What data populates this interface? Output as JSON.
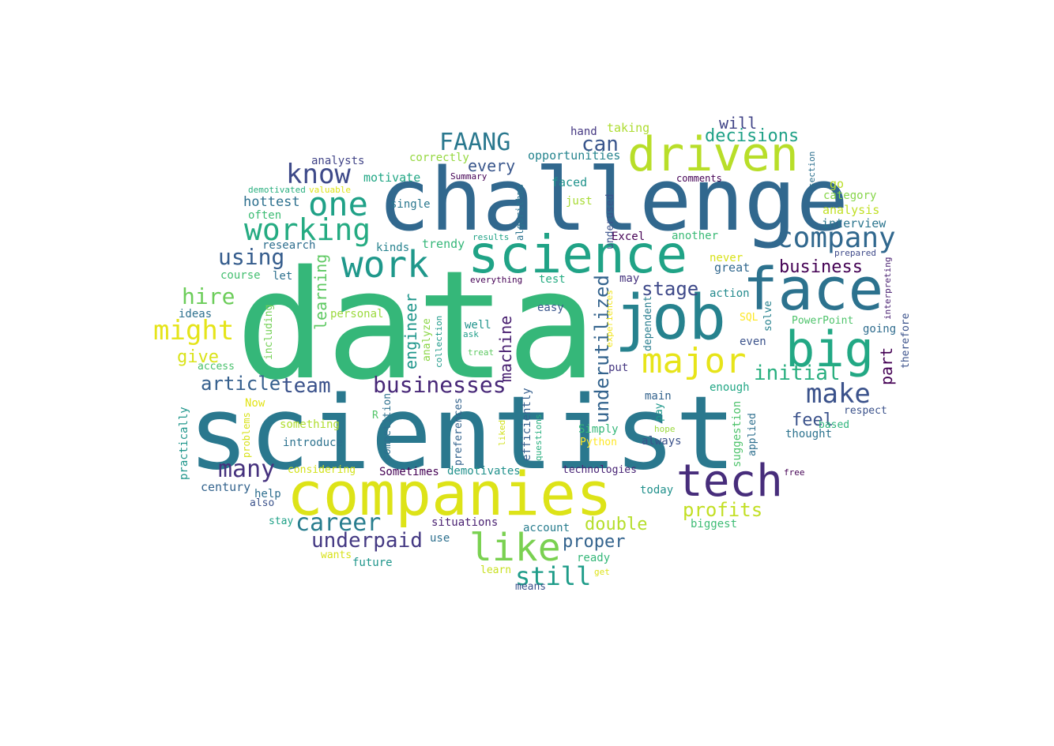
{
  "words": [
    {
      "text": "data",
      "color": "#35b779",
      "vertical": false
    },
    {
      "text": "scientist",
      "color": "#2a788e",
      "vertical": false
    },
    {
      "text": "challenge",
      "color": "#31688e",
      "vertical": false
    },
    {
      "text": "companies",
      "color": "#dde318",
      "vertical": false
    },
    {
      "text": "job",
      "color": "#26828e",
      "vertical": false
    },
    {
      "text": "face",
      "color": "#2c728e",
      "vertical": false
    },
    {
      "text": "science",
      "color": "#20a386",
      "vertical": false
    },
    {
      "text": "driven",
      "color": "#b8de29",
      "vertical": false
    },
    {
      "text": "tech",
      "color": "#472d7b",
      "vertical": false
    },
    {
      "text": "big",
      "color": "#22a884",
      "vertical": false
    },
    {
      "text": "major",
      "color": "#e7e419",
      "vertical": false
    },
    {
      "text": "like",
      "color": "#7ad151",
      "vertical": false
    },
    {
      "text": "work",
      "color": "#1f988b",
      "vertical": false
    },
    {
      "text": "one",
      "color": "#1fa187",
      "vertical": false
    },
    {
      "text": "working",
      "color": "#25ab82",
      "vertical": false
    },
    {
      "text": "company",
      "color": "#31688e",
      "vertical": false
    },
    {
      "text": "make",
      "color": "#3b528b",
      "vertical": false
    },
    {
      "text": "know",
      "color": "#3e4a89",
      "vertical": false
    },
    {
      "text": "might",
      "color": "#e5e419",
      "vertical": false
    },
    {
      "text": "businesses",
      "color": "#482878",
      "vertical": false
    },
    {
      "text": "many",
      "color": "#46327e",
      "vertical": false
    },
    {
      "text": "FAANG",
      "color": "#2a788e",
      "vertical": false
    },
    {
      "text": "career",
      "color": "#287d8e",
      "vertical": false
    },
    {
      "text": "underpaid",
      "color": "#443983",
      "vertical": false
    },
    {
      "text": "still",
      "color": "#1e9c89",
      "vertical": false
    },
    {
      "text": "hire",
      "color": "#6ccd5a",
      "vertical": false
    },
    {
      "text": "initial",
      "color": "#29af7f",
      "vertical": false
    },
    {
      "text": "profits",
      "color": "#c2df23",
      "vertical": false
    },
    {
      "text": "using",
      "color": "#365d8d",
      "vertical": false
    },
    {
      "text": "underutilized",
      "color": "#33638d",
      "vertical": true
    },
    {
      "text": "team",
      "color": "#3b528b",
      "vertical": false
    },
    {
      "text": "article",
      "color": "#355f8d",
      "vertical": false
    },
    {
      "text": "business",
      "color": "#440154",
      "vertical": false
    },
    {
      "text": "decisions",
      "color": "#1fa187",
      "vertical": false
    },
    {
      "text": "can",
      "color": "#39558c",
      "vertical": false
    },
    {
      "text": "stage",
      "color": "#3e4989",
      "vertical": false
    },
    {
      "text": "double",
      "color": "#b5de2b",
      "vertical": false
    },
    {
      "text": "proper",
      "color": "#33638d",
      "vertical": false
    },
    {
      "text": "feel",
      "color": "#3b528b",
      "vertical": false
    },
    {
      "text": "give",
      "color": "#dae319",
      "vertical": false
    },
    {
      "text": "machine",
      "color": "#481f70",
      "vertical": true
    },
    {
      "text": "engineer",
      "color": "#1f968b",
      "vertical": true
    },
    {
      "text": "learning",
      "color": "#5ec962",
      "vertical": true
    },
    {
      "text": "every",
      "color": "#39568c",
      "vertical": false
    },
    {
      "text": "part",
      "color": "#440154",
      "vertical": true
    },
    {
      "text": "will",
      "color": "#414487",
      "vertical": false
    },
    {
      "text": "hottest",
      "color": "#2d708e",
      "vertical": false
    },
    {
      "text": "taking",
      "color": "#addc30",
      "vertical": false
    },
    {
      "text": "hand",
      "color": "#453882",
      "vertical": false
    },
    {
      "text": "opportunities",
      "color": "#25848e",
      "vertical": false
    },
    {
      "text": "correctly",
      "color": "#95d840",
      "vertical": false
    },
    {
      "text": "analysts",
      "color": "#414487",
      "vertical": false
    },
    {
      "text": "Summary",
      "color": "#440154",
      "vertical": false
    },
    {
      "text": "motivate",
      "color": "#22a785",
      "vertical": false
    },
    {
      "text": "faced",
      "color": "#20938c",
      "vertical": false
    },
    {
      "text": "demotivated",
      "color": "#29af7f",
      "vertical": false
    },
    {
      "text": "valuable",
      "color": "#dde318",
      "vertical": false
    },
    {
      "text": "single",
      "color": "#2a778e",
      "vertical": false
    },
    {
      "text": "algorithms",
      "color": "#2c738e",
      "vertical": true
    },
    {
      "text": "just",
      "color": "#a8db34",
      "vertical": false
    },
    {
      "text": "underused",
      "color": "#3b528b",
      "vertical": true
    },
    {
      "text": "comments",
      "color": "#440154",
      "vertical": false
    },
    {
      "text": "section",
      "color": "#2d708e",
      "vertical": true
    },
    {
      "text": "go",
      "color": "#bade28",
      "vertical": false
    },
    {
      "text": "category",
      "color": "#86d549",
      "vertical": false
    },
    {
      "text": "analysis",
      "color": "#c0df25",
      "vertical": false
    },
    {
      "text": "interview",
      "color": "#2b758e",
      "vertical": false
    },
    {
      "text": "prepared",
      "color": "#3e4989",
      "vertical": false
    },
    {
      "text": "often",
      "color": "#3dbc74",
      "vertical": false
    },
    {
      "text": "research",
      "color": "#2e6e8e",
      "vertical": false
    },
    {
      "text": "kinds",
      "color": "#26828e",
      "vertical": false
    },
    {
      "text": "trendy",
      "color": "#35b779",
      "vertical": false
    },
    {
      "text": "results",
      "color": "#20a386",
      "vertical": false
    },
    {
      "text": "Excel",
      "color": "#440154",
      "vertical": false
    },
    {
      "text": "another",
      "color": "#3aba76",
      "vertical": false
    },
    {
      "text": "course",
      "color": "#44bf70",
      "vertical": false
    },
    {
      "text": "let",
      "color": "#2d708e",
      "vertical": false
    },
    {
      "text": "everything",
      "color": "#440154",
      "vertical": false
    },
    {
      "text": "test",
      "color": "#25ac82",
      "vertical": false
    },
    {
      "text": "may",
      "color": "#46337e",
      "vertical": false
    },
    {
      "text": "never",
      "color": "#d8e219",
      "vertical": false
    },
    {
      "text": "great",
      "color": "#31688e",
      "vertical": false
    },
    {
      "text": "interpreting",
      "color": "#481f70",
      "vertical": true
    },
    {
      "text": "ideas",
      "color": "#2d708e",
      "vertical": false
    },
    {
      "text": "personal",
      "color": "#9bd93c",
      "vertical": false
    },
    {
      "text": "including",
      "color": "#73d056",
      "vertical": true
    },
    {
      "text": "analyze",
      "color": "#8bd646",
      "vertical": true
    },
    {
      "text": "collection",
      "color": "#1f9a8a",
      "vertical": true
    },
    {
      "text": "well",
      "color": "#20938c",
      "vertical": false
    },
    {
      "text": "ask",
      "color": "#1f9e89",
      "vertical": false
    },
    {
      "text": "treat",
      "color": "#5ec962",
      "vertical": false
    },
    {
      "text": "easy",
      "color": "#39568c",
      "vertical": false
    },
    {
      "text": "experiences",
      "color": "#f1e51d",
      "vertical": true
    },
    {
      "text": "dependent",
      "color": "#287d8e",
      "vertical": true
    },
    {
      "text": "action",
      "color": "#238a8d",
      "vertical": false
    },
    {
      "text": "SQL",
      "color": "#fde725",
      "vertical": false
    },
    {
      "text": "solve",
      "color": "#26818e",
      "vertical": true
    },
    {
      "text": "PowerPoint",
      "color": "#4ec36b",
      "vertical": false
    },
    {
      "text": "going",
      "color": "#2f6c8e",
      "vertical": false
    },
    {
      "text": "therefore",
      "color": "#3b528b",
      "vertical": true
    },
    {
      "text": "access",
      "color": "#4ac16d",
      "vertical": false
    },
    {
      "text": "even",
      "color": "#3b528b",
      "vertical": false
    },
    {
      "text": "put",
      "color": "#453781",
      "vertical": false
    },
    {
      "text": "main",
      "color": "#33638d",
      "vertical": false
    },
    {
      "text": "enough",
      "color": "#22a785",
      "vertical": false
    },
    {
      "text": "practically",
      "color": "#1f968b",
      "vertical": true
    },
    {
      "text": "Now",
      "color": "#e2e418",
      "vertical": false
    },
    {
      "text": "problems",
      "color": "#d8e219",
      "vertical": true
    },
    {
      "text": "competition",
      "color": "#2d708e",
      "vertical": true
    },
    {
      "text": "preferences",
      "color": "#33638d",
      "vertical": true
    },
    {
      "text": "efficiently",
      "color": "#355e8d",
      "vertical": true
    },
    {
      "text": "questions",
      "color": "#29af7f",
      "vertical": true
    },
    {
      "text": "liked",
      "color": "#d2e21b",
      "vertical": true
    },
    {
      "text": "pay",
      "color": "#1f988b",
      "vertical": true
    },
    {
      "text": "suggestion",
      "color": "#4ec36b",
      "vertical": true
    },
    {
      "text": "applied",
      "color": "#2e6f8e",
      "vertical": true
    },
    {
      "text": "respect",
      "color": "#3b528b",
      "vertical": false
    },
    {
      "text": "based",
      "color": "#2fb47c",
      "vertical": false
    },
    {
      "text": "thought",
      "color": "#2c728e",
      "vertical": false
    },
    {
      "text": "something",
      "color": "#b0dd2f",
      "vertical": false
    },
    {
      "text": "R",
      "color": "#52c569",
      "vertical": false
    },
    {
      "text": "Simply",
      "color": "#35b779",
      "vertical": false
    },
    {
      "text": "always",
      "color": "#3b528b",
      "vertical": false
    },
    {
      "text": "hope",
      "color": "#9bd93c",
      "vertical": false
    },
    {
      "text": "introduce",
      "color": "#2c728e",
      "vertical": false
    },
    {
      "text": "Python",
      "color": "#fde725",
      "vertical": false
    },
    {
      "text": "considering",
      "color": "#d2e21b",
      "vertical": false
    },
    {
      "text": "Sometimes",
      "color": "#440154",
      "vertical": false
    },
    {
      "text": "demotivates",
      "color": "#21918c",
      "vertical": false
    },
    {
      "text": "technologies",
      "color": "#482475",
      "vertical": false
    },
    {
      "text": "free",
      "color": "#440154",
      "vertical": false
    },
    {
      "text": "century",
      "color": "#33638d",
      "vertical": false
    },
    {
      "text": "today",
      "color": "#21918c",
      "vertical": false
    },
    {
      "text": "help",
      "color": "#2e6e8e",
      "vertical": false
    },
    {
      "text": "also",
      "color": "#3b528b",
      "vertical": false
    },
    {
      "text": "stay",
      "color": "#1fa187",
      "vertical": false
    },
    {
      "text": "situations",
      "color": "#481f70",
      "vertical": false
    },
    {
      "text": "account",
      "color": "#287d8e",
      "vertical": false
    },
    {
      "text": "biggest",
      "color": "#3dbc74",
      "vertical": false
    },
    {
      "text": "use",
      "color": "#2d708e",
      "vertical": false
    },
    {
      "text": "wants",
      "color": "#d8e219",
      "vertical": false
    },
    {
      "text": "future",
      "color": "#1f968b",
      "vertical": false
    },
    {
      "text": "ready",
      "color": "#35b779",
      "vertical": false
    },
    {
      "text": "learn",
      "color": "#c8e020",
      "vertical": false
    },
    {
      "text": "get",
      "color": "#dde318",
      "vertical": false
    },
    {
      "text": "means",
      "color": "#3b528b",
      "vertical": false
    }
  ]
}
